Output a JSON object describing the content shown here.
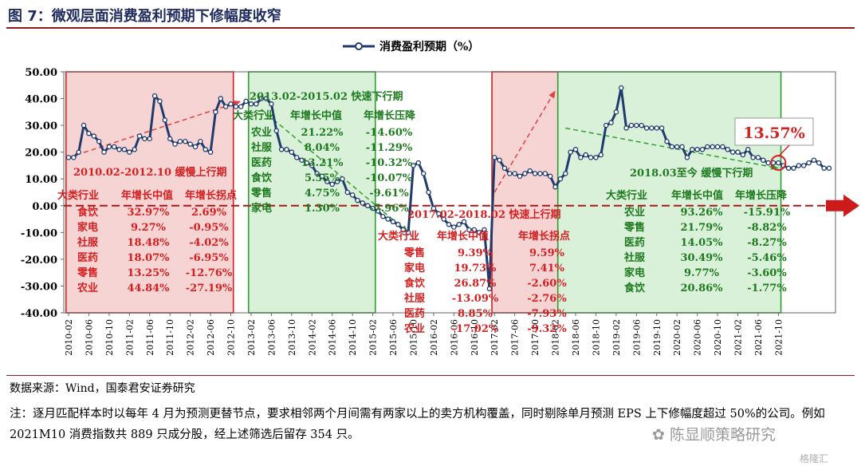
{
  "figure": {
    "title": "图 7：微观层面消费盈利预期下修幅度收窄",
    "source": "数据来源：Wind，国泰君安证券研究",
    "note": "注：逐月匹配样本时以每年 4 月为预测更替节点，要求相邻两个月间需有两家以上的卖方机构覆盖，同时剔除单月预测 EPS 上下修幅度超过 50%的公司。例如 2021M10 消费指数共 889 只成分股，经上述筛选后留存 354 只。",
    "watermark": "陈显顺策略研究",
    "watermark2": "格隆汇"
  },
  "chart_data": {
    "type": "line",
    "title": "",
    "legend": "消费盈利预期（%）",
    "legend_position": "top-center",
    "xlabel": "",
    "ylabel": "",
    "ylim": [
      -40,
      50
    ],
    "yticks": [
      "50.00",
      "40.00",
      "30.00",
      "20.00",
      "10.00",
      "0.00",
      "-10.00",
      "-20.00",
      "-30.00",
      "-40.00"
    ],
    "xticks": [
      "2010-02",
      "2010-06",
      "2010-10",
      "2011-02",
      "2011-06",
      "2011-10",
      "2012-02",
      "2012-06",
      "2012-10",
      "2013-02",
      "2013-06",
      "2013-10",
      "2014-02",
      "2014-06",
      "2014-10",
      "2015-02",
      "2015-06",
      "2015-10",
      "2016-02",
      "2016-06",
      "2016-10",
      "2017-02",
      "2017-06",
      "2017-10",
      "2018-02",
      "2018-06",
      "2018-10",
      "2019-02",
      "2019-06",
      "2019-10",
      "2020-02",
      "2020-06",
      "2020-10",
      "2021-02",
      "2021-06",
      "2021-10"
    ],
    "series": [
      {
        "name": "消费盈利预期（%）",
        "color": "#1f3b6e",
        "x_start": "2010-02",
        "values": [
          18,
          18,
          20,
          30,
          27,
          26,
          24,
          20,
          22,
          22,
          21,
          21,
          20,
          21,
          26,
          25,
          25,
          41,
          39,
          32,
          25,
          23,
          24,
          24,
          23,
          22,
          24,
          21,
          20,
          35,
          40,
          37,
          38,
          37,
          37,
          39,
          38,
          38,
          40,
          40,
          38,
          28,
          21,
          21,
          20,
          18,
          17,
          16,
          15,
          12,
          11,
          9,
          8,
          9,
          10,
          5,
          4,
          2,
          1,
          0,
          -1,
          -2,
          -4,
          -5,
          -6,
          -7,
          -9,
          -10,
          15,
          16,
          12,
          5,
          -1,
          -3,
          -5,
          -7,
          -8,
          -7,
          -6,
          -9,
          -9,
          -10,
          -9,
          -31,
          18,
          17,
          14,
          12,
          12,
          11,
          12,
          13,
          12,
          12,
          12,
          11,
          7,
          10,
          12,
          20,
          21,
          18,
          19,
          18,
          18,
          19,
          30,
          31,
          35,
          44,
          29,
          30,
          30,
          30,
          29,
          29,
          29,
          29,
          24,
          22,
          22,
          22,
          18,
          21,
          21,
          21,
          22,
          22,
          22,
          22,
          21,
          20,
          20,
          19,
          21,
          18,
          18,
          17,
          16,
          16,
          16,
          15,
          14,
          14,
          15,
          15,
          16,
          17,
          16,
          14,
          14
        ]
      }
    ],
    "annotations": {
      "periods": [
        {
          "label": "2010.02-2012.10  缓慢上行期",
          "start": "2010-02",
          "end": "2012-10",
          "shade": "#f7d4d4",
          "border": "#cc2222",
          "text_color": "#d42020",
          "table": {
            "headers": [
              "大类行业",
              "年增长中值",
              "年增长拐点"
            ],
            "rows": [
              [
                "食饮",
                "32.97%",
                "2.69%"
              ],
              [
                "家电",
                "9.27%",
                "-0.95%"
              ],
              [
                "社服",
                "18.48%",
                "-4.02%"
              ],
              [
                "医药",
                "18.07%",
                "-6.95%"
              ],
              [
                "零售",
                "13.25%",
                "-12.76%"
              ],
              [
                "农业",
                "44.84%",
                "-27.19%"
              ]
            ]
          }
        },
        {
          "label": "2013.02-2015.02  快速下行期",
          "start": "2013-02",
          "end": "2015-02",
          "shade": "#d9f0d9",
          "border": "#2ea02e",
          "text_color": "#1e7a1e",
          "table": {
            "headers": [
              "大类行业",
              "年增长中值",
              "年增长压降"
            ],
            "rows": [
              [
                "农业",
                "21.22%",
                "-14.60%"
              ],
              [
                "社服",
                "8.04%",
                "-11.29%"
              ],
              [
                "医药",
                "13.21%",
                "-10.32%"
              ],
              [
                "食饮",
                "5.55%",
                "-10.07%"
              ],
              [
                "零售",
                "4.75%",
                "-9.61%"
              ],
              [
                "家电",
                "1.30%",
                "-7.96%"
              ]
            ]
          }
        },
        {
          "label": "2017.02-2018.02  快速上行期",
          "start": "2017-02",
          "end": "2018-02",
          "shade": "#f7d4d4",
          "border": "#cc2222",
          "text_color": "#d42020",
          "table": {
            "headers": [
              "大类行业",
              "年增长中值",
              "年增长拐点"
            ],
            "rows": [
              [
                "零售",
                "9.39%",
                "9.59%"
              ],
              [
                "家电",
                "19.73%",
                "7.41%"
              ],
              [
                "食饮",
                "26.87%",
                "-2.60%"
              ],
              [
                "社服",
                "-13.09%",
                "-2.76%"
              ],
              [
                "医药",
                "8.85%",
                "-7.93%"
              ],
              [
                "农业",
                "-17.02%",
                "-9.32%"
              ]
            ]
          }
        },
        {
          "label": "2018.03至今  缓慢下行期",
          "start": "2018-03",
          "end": "2021-10",
          "shade": "#d9f0d9",
          "border": "#2ea02e",
          "text_color": "#1e7a1e",
          "table": {
            "headers": [
              "大类行业",
              "年增长中值",
              "年增长压降"
            ],
            "rows": [
              [
                "农业",
                "93.26%",
                "-15.91%"
              ],
              [
                "零售",
                "21.79%",
                "-8.82%"
              ],
              [
                "医药",
                "14.05%",
                "-8.27%"
              ],
              [
                "社服",
                "30.49%",
                "-5.46%"
              ],
              [
                "家电",
                "9.77%",
                "-3.60%"
              ],
              [
                "食饮",
                "20.86%",
                "-1.77%"
              ]
            ]
          }
        }
      ],
      "callout": {
        "text": "13.57%",
        "at": "2021-10"
      }
    }
  }
}
